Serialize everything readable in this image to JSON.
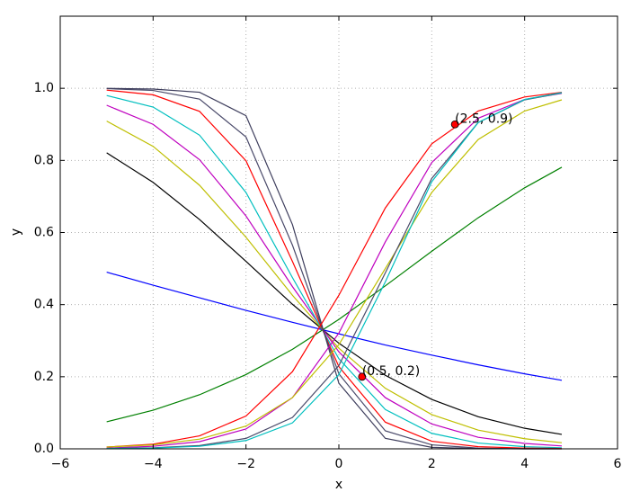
{
  "chart_data": {
    "type": "line",
    "xlabel": "x",
    "ylabel": "y",
    "xlim": [
      -6,
      6
    ],
    "ylim": [
      0,
      1.2
    ],
    "xticks": [
      {
        "value": -6,
        "label": "−6"
      },
      {
        "value": -4,
        "label": "−4"
      },
      {
        "value": -2,
        "label": "−2"
      },
      0,
      2,
      4,
      6
    ],
    "yticks": [
      {
        "value": 0,
        "label": "0.0"
      },
      0.2,
      0.4,
      0.6,
      0.8,
      {
        "value": 1,
        "label": "1.0"
      }
    ],
    "grid": true,
    "x": [
      -5,
      -4,
      -3,
      -2,
      -1,
      0,
      1,
      2,
      3,
      4,
      4.8
    ],
    "series": [
      {
        "color": "#0000ff",
        "values": [
          0.49,
          0.454,
          0.419,
          0.384,
          0.351,
          0.319,
          0.288,
          0.26,
          0.233,
          0.208,
          0.19
        ]
      },
      {
        "color": "#008000",
        "values": [
          0.075,
          0.107,
          0.15,
          0.206,
          0.276,
          0.359,
          0.452,
          0.548,
          0.641,
          0.724,
          0.781
        ]
      },
      {
        "color": "#000000",
        "values": [
          0.821,
          0.739,
          0.636,
          0.52,
          0.401,
          0.293,
          0.204,
          0.137,
          0.089,
          0.057,
          0.04
        ]
      },
      {
        "color": "#bfbf00",
        "values": [
          0.909,
          0.839,
          0.731,
          0.587,
          0.426,
          0.279,
          0.168,
          0.095,
          0.052,
          0.028,
          0.017
        ]
      },
      {
        "color": "#bf00bf",
        "values": [
          0.953,
          0.9,
          0.802,
          0.646,
          0.45,
          0.269,
          0.142,
          0.069,
          0.032,
          0.015,
          0.008
        ]
      },
      {
        "color": "#00bfbf",
        "values": [
          0.98,
          0.948,
          0.87,
          0.711,
          0.475,
          0.25,
          0.109,
          0.043,
          0.016,
          0.006,
          0.003
        ]
      },
      {
        "color": "#ff0000",
        "values": [
          0.995,
          0.982,
          0.936,
          0.799,
          0.52,
          0.228,
          0.074,
          0.021,
          0.006,
          0.002,
          0.001
        ]
      },
      {
        "color": "#4a4a6a",
        "values": [
          0.999,
          0.994,
          0.97,
          0.865,
          0.565,
          0.208,
          0.05,
          0.011,
          0.002,
          0.0,
          0.0
        ]
      },
      {
        "color": "#3d3d5c",
        "values": [
          1.0,
          0.998,
          0.989,
          0.924,
          0.622,
          0.182,
          0.029,
          0.004,
          0.001,
          0.0,
          0.0
        ]
      },
      {
        "color": "#ff0000",
        "values": [
          0.005,
          0.013,
          0.036,
          0.091,
          0.214,
          0.426,
          0.668,
          0.846,
          0.937,
          0.976,
          0.989
        ]
      },
      {
        "color": "#bf00bf",
        "values": [
          0.002,
          0.007,
          0.02,
          0.055,
          0.142,
          0.321,
          0.574,
          0.794,
          0.917,
          0.969,
          0.986
        ]
      },
      {
        "color": "#bfbf00",
        "values": [
          0.005,
          0.011,
          0.027,
          0.063,
          0.142,
          0.289,
          0.5,
          0.711,
          0.858,
          0.937,
          0.968
        ]
      },
      {
        "color": "#4a4a6a",
        "values": [
          0.001,
          0.003,
          0.009,
          0.029,
          0.087,
          0.231,
          0.488,
          0.75,
          0.905,
          0.968,
          0.987
        ]
      },
      {
        "color": "#00bfbf",
        "values": [
          0.001,
          0.002,
          0.007,
          0.023,
          0.072,
          0.206,
          0.463,
          0.741,
          0.905,
          0.969,
          0.988
        ]
      }
    ],
    "points": {
      "color": "#ff0000",
      "x": [
        0.5,
        2.5
      ],
      "y": [
        0.2,
        0.9
      ],
      "labels": [
        "(0.5, 0.2)",
        "(2.5, 0.9)"
      ]
    }
  }
}
